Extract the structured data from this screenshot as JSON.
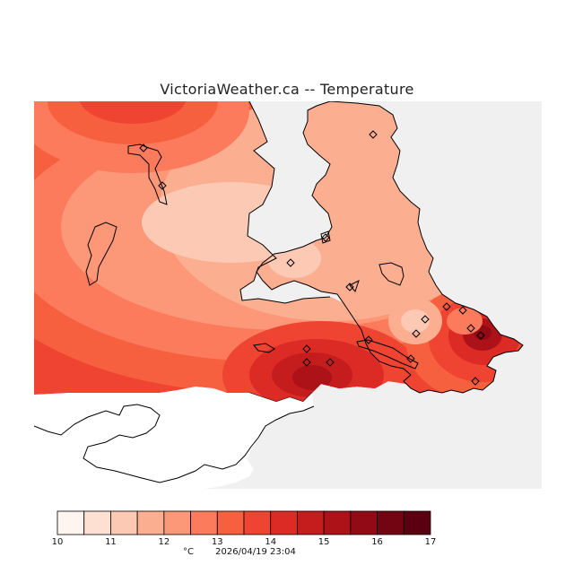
{
  "title": "VictoriaWeather.ca -- Temperature",
  "legend": {
    "unit": "°C",
    "timestamp": "2026/04/19 23:04",
    "ticks": [
      "10",
      "11",
      "12",
      "13",
      "14",
      "15",
      "16",
      "17"
    ],
    "colors": [
      "#fff5f0",
      "#fee0d2",
      "#fcc9b4",
      "#fcae91",
      "#fc9777",
      "#fb7b5c",
      "#f6603f",
      "#ee4431",
      "#dc2a25",
      "#c51c1e",
      "#ad1219",
      "#920a15",
      "#730512",
      "#5a0010"
    ]
  },
  "map": {
    "background_color": "#f0f0f0",
    "land_base_color": "#ee4431",
    "coastline_color": "#000000",
    "station_marker": "diamond"
  }
}
